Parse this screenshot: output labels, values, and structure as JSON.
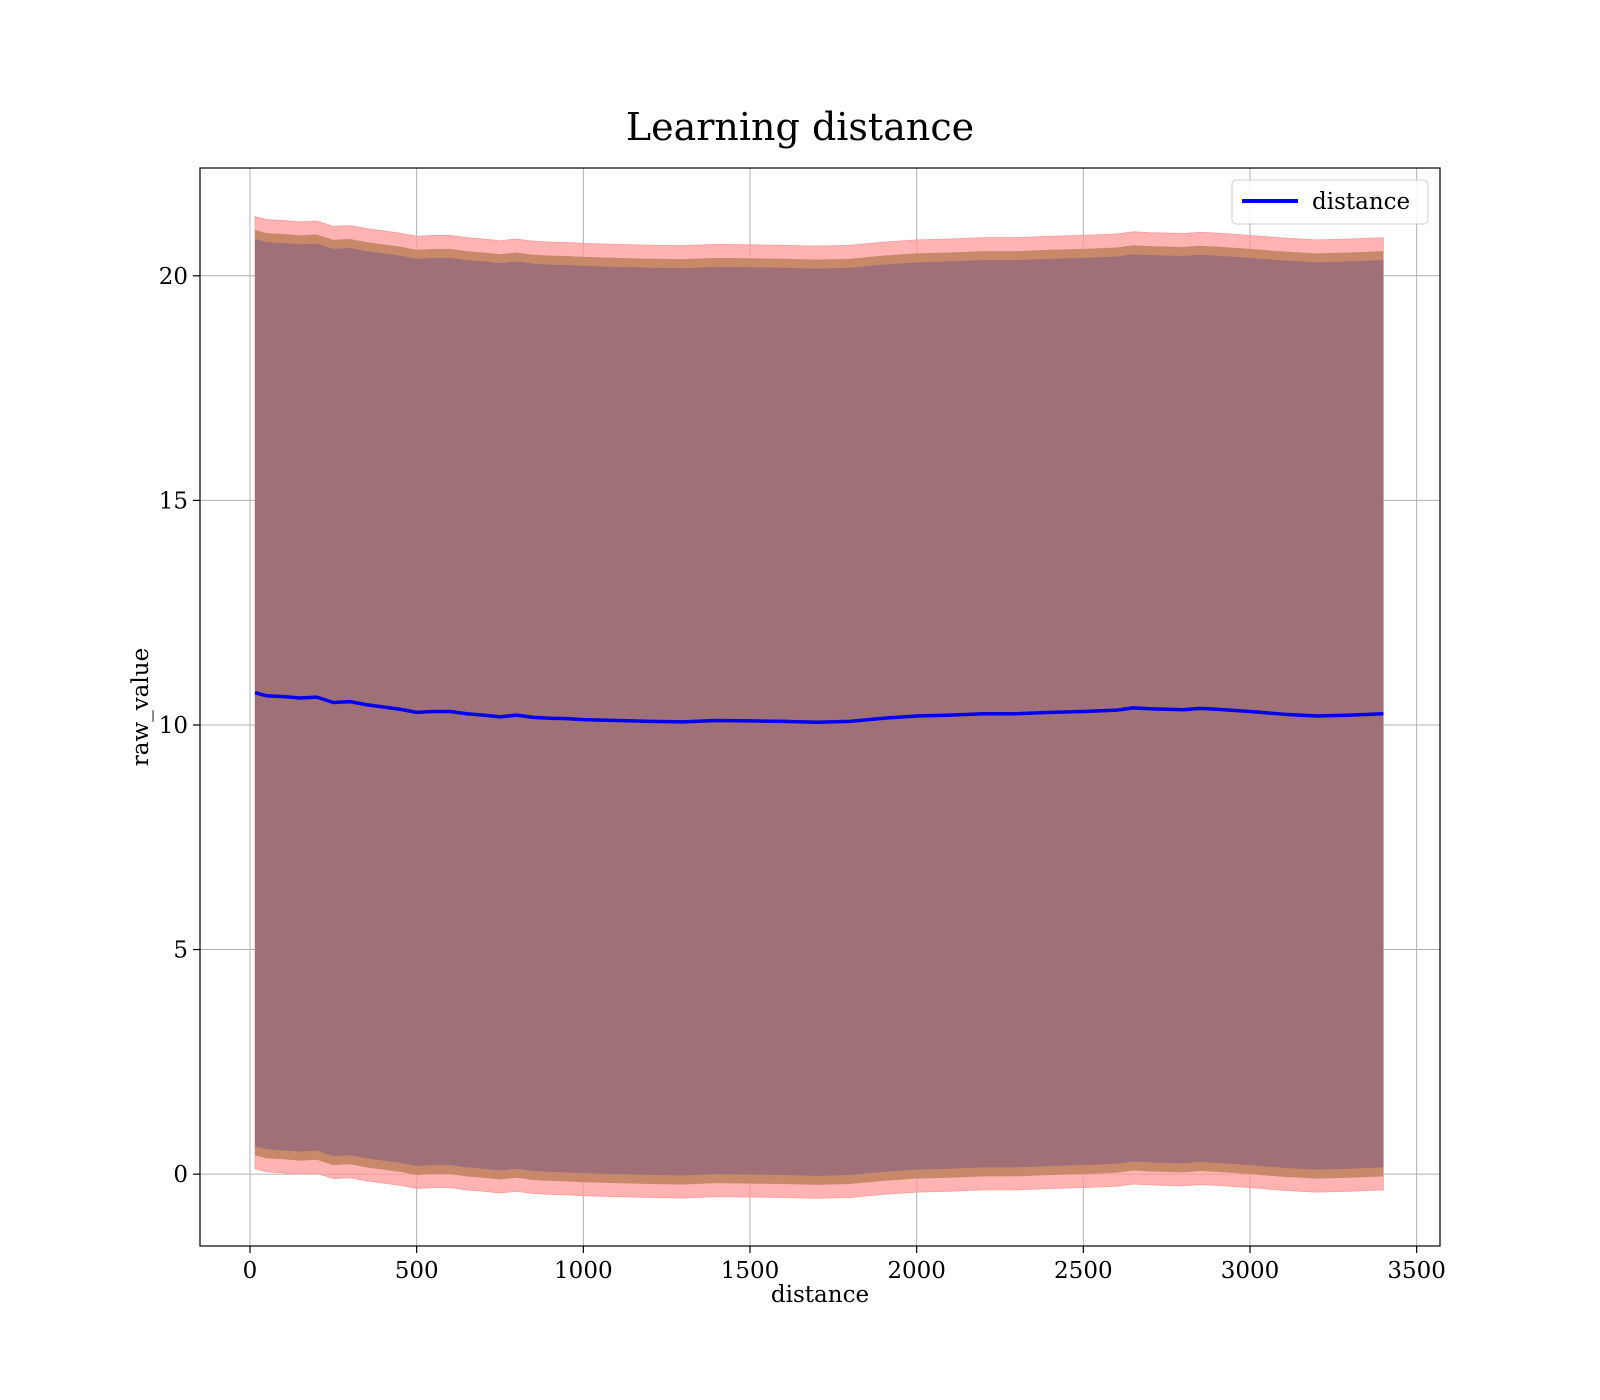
{
  "chart_data": {
    "type": "area",
    "title": "Learning distance",
    "xlabel": "distance",
    "ylabel": "raw_value",
    "xlim": [
      -150,
      3570
    ],
    "ylim": [
      -1.6,
      22.4
    ],
    "xticks": [
      0,
      500,
      1000,
      1500,
      2000,
      2500,
      3000,
      3500
    ],
    "yticks": [
      0,
      5,
      10,
      15,
      20
    ],
    "grid": true,
    "legend_position": "top-right",
    "colors": {
      "mean_line": "#0000ee",
      "outer_band": "#ff9999",
      "middle_band": "#c8896a",
      "inner_band": "#a07078"
    },
    "x": [
      15,
      50,
      100,
      150,
      200,
      250,
      300,
      350,
      400,
      450,
      500,
      550,
      600,
      650,
      700,
      750,
      800,
      850,
      900,
      950,
      1000,
      1100,
      1200,
      1300,
      1400,
      1500,
      1600,
      1700,
      1800,
      1900,
      2000,
      2100,
      2200,
      2300,
      2400,
      2500,
      2600,
      2650,
      2700,
      2800,
      2850,
      2900,
      3000,
      3100,
      3200,
      3300,
      3400
    ],
    "series": [
      {
        "name": "distance",
        "values": [
          10.72,
          10.65,
          10.63,
          10.6,
          10.62,
          10.5,
          10.52,
          10.45,
          10.4,
          10.35,
          10.28,
          10.3,
          10.3,
          10.25,
          10.22,
          10.18,
          10.22,
          10.17,
          10.15,
          10.14,
          10.12,
          10.1,
          10.08,
          10.07,
          10.1,
          10.09,
          10.08,
          10.06,
          10.08,
          10.15,
          10.2,
          10.22,
          10.25,
          10.25,
          10.28,
          10.3,
          10.33,
          10.38,
          10.36,
          10.34,
          10.37,
          10.35,
          10.3,
          10.24,
          10.2,
          10.22,
          10.25
        ],
        "band_inner_halfwidth": 10.1,
        "band_middle_halfwidth": 10.3,
        "band_outer_halfwidth": 10.6
      }
    ]
  }
}
